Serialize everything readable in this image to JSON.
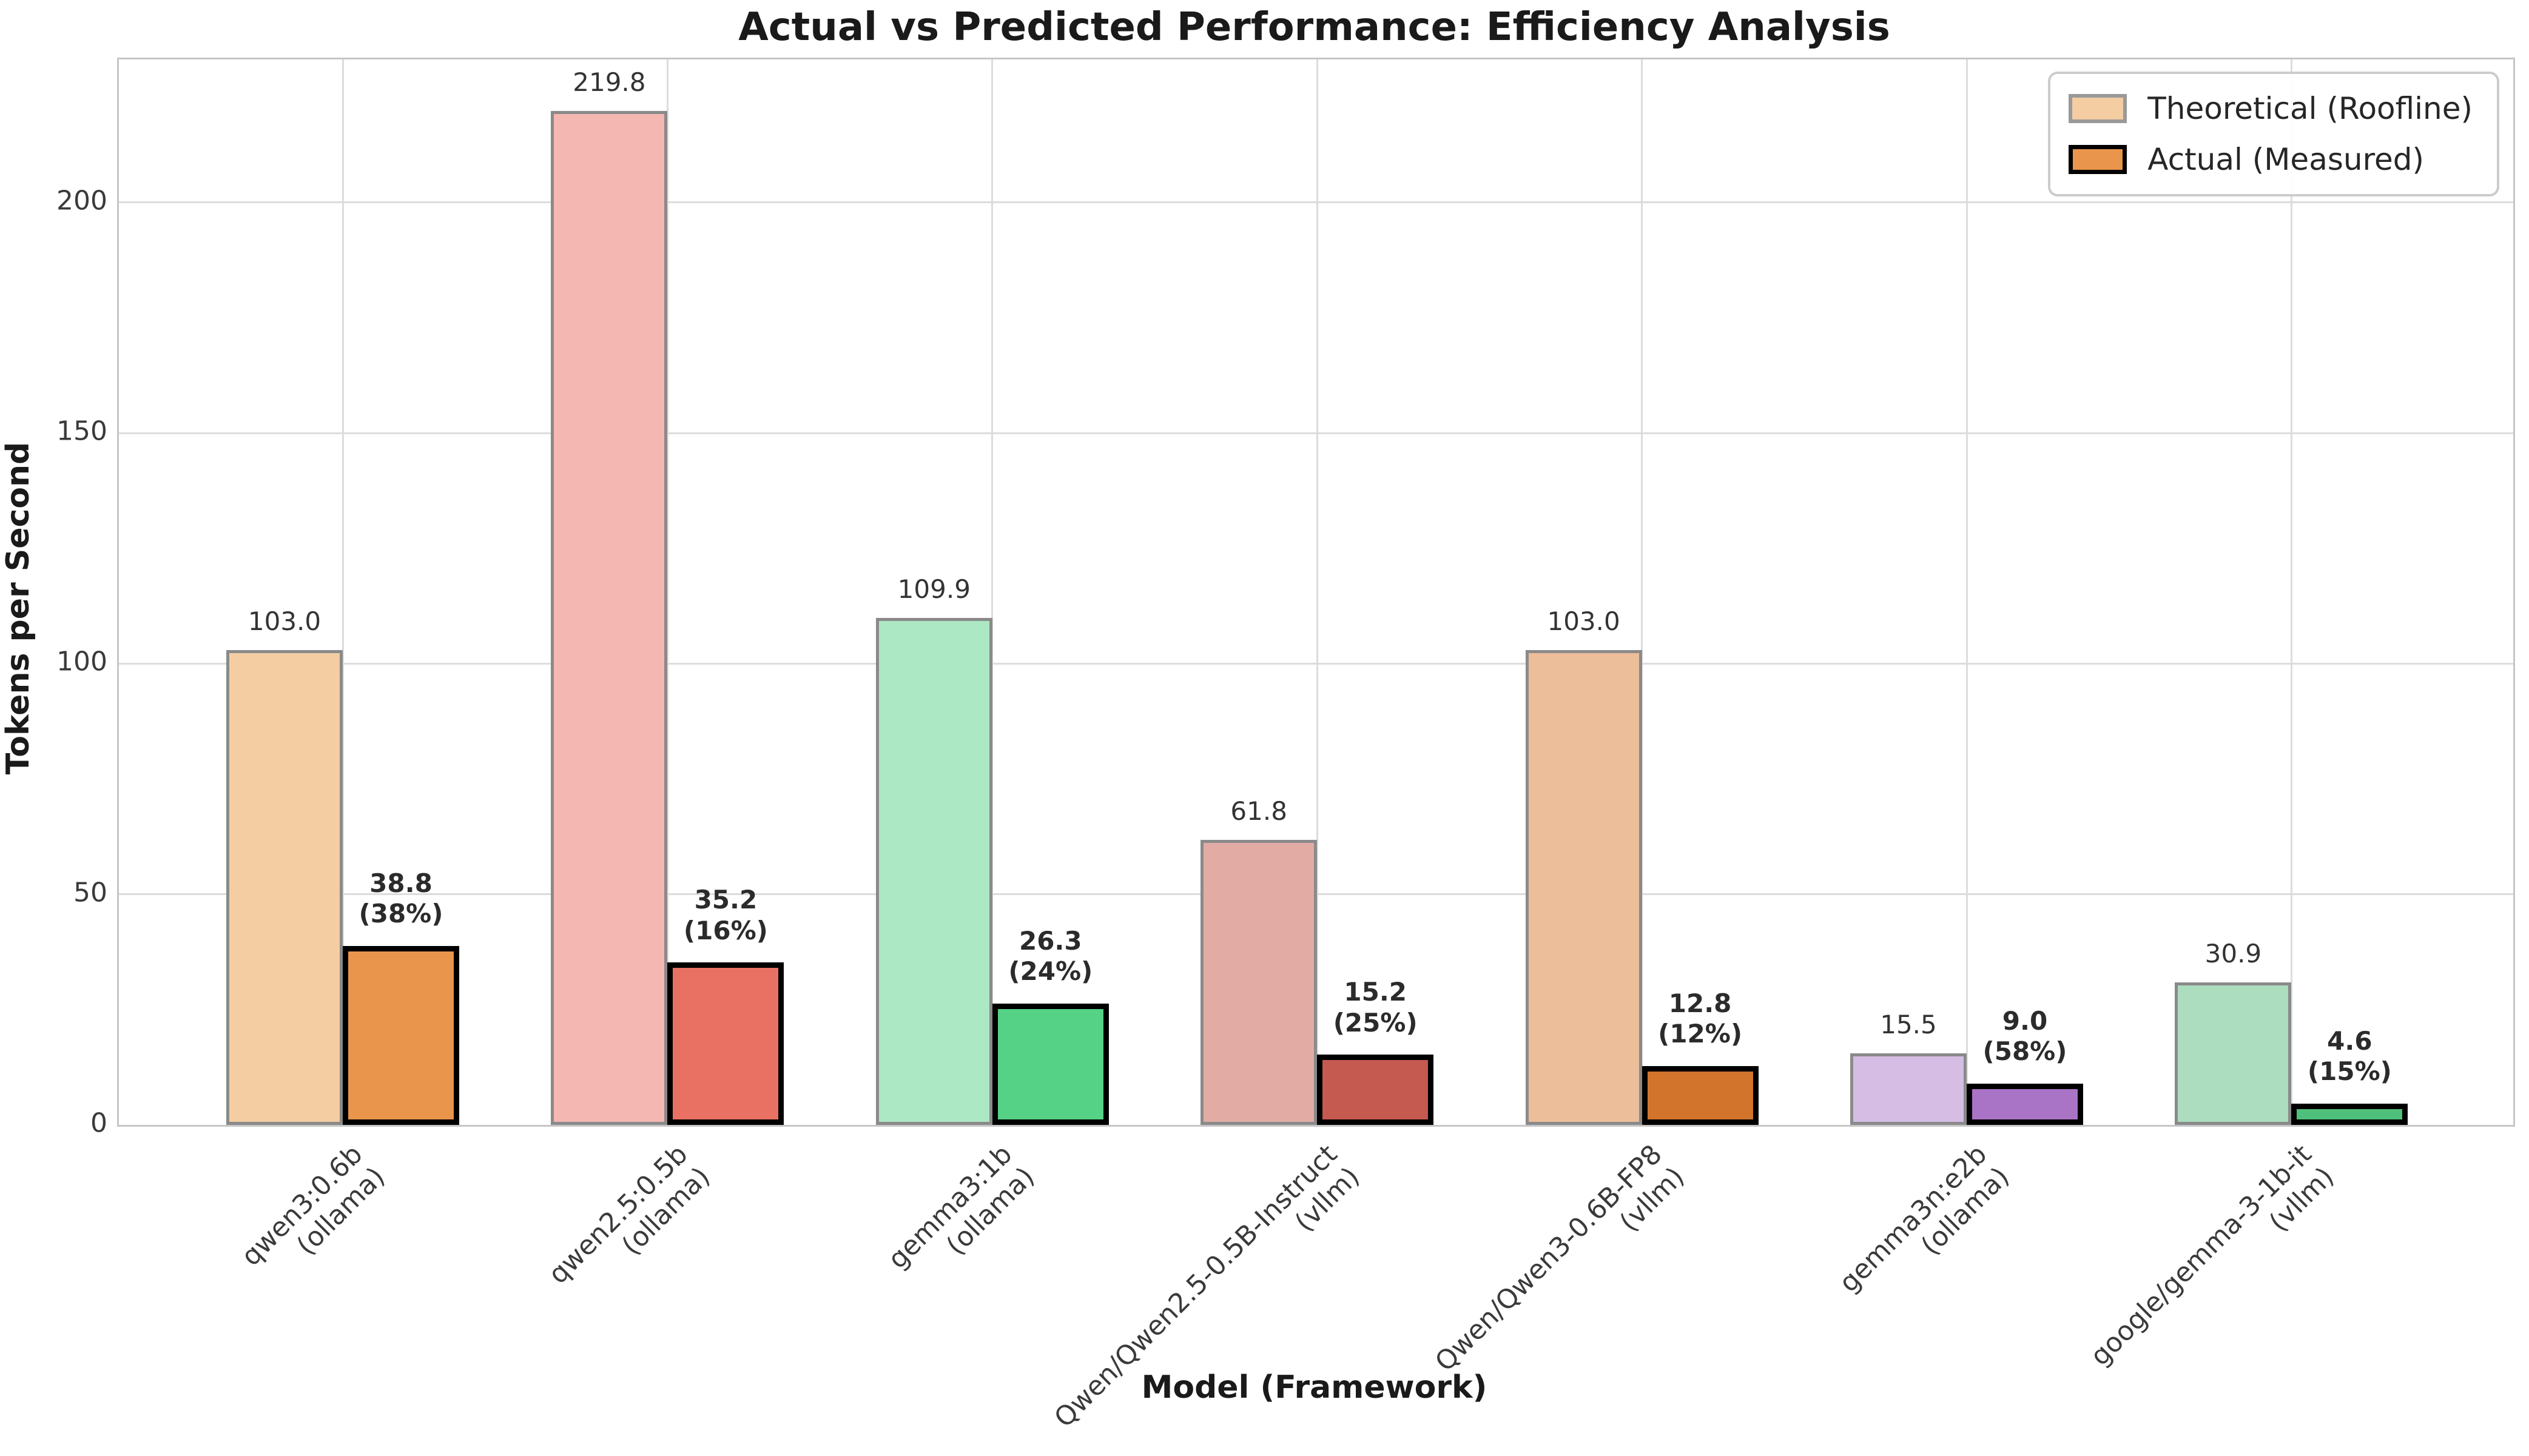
{
  "title": "Actual vs Predicted Performance: Efficiency Analysis",
  "legend": {
    "theoretical_label": "Theoretical (Roofline)",
    "actual_label": "Actual (Measured)",
    "theoretical_swatch_color": "#F4CDA3",
    "actual_swatch_color": "#E9964C"
  },
  "chart_data": {
    "type": "bar",
    "title": "Actual vs Predicted Performance: Efficiency Analysis",
    "xlabel": "Model (Framework)",
    "ylabel": "Tokens per Second",
    "ylim": [
      0,
      231
    ],
    "yticks": [
      0,
      50,
      100,
      150,
      200
    ],
    "grid": true,
    "legend_position": "upper right",
    "categories": [
      "qwen3:0.6b\n(ollama)",
      "qwen2.5:0.5b\n(ollama)",
      "gemma3:1b\n(ollama)",
      "Qwen/Qwen2.5-0.5B-Instruct\n(vllm)",
      "Qwen/Qwen3-0.6B-FP8\n(vllm)",
      "gemma3n:e2b\n(ollama)",
      "google/gemma-3-1b-it\n(vllm)"
    ],
    "series": [
      {
        "name": "Theoretical (Roofline)",
        "values": [
          103.0,
          219.8,
          109.9,
          61.8,
          103.0,
          15.5,
          30.9
        ]
      },
      {
        "name": "Actual (Measured)",
        "values": [
          38.8,
          35.2,
          26.3,
          15.2,
          12.8,
          9.0,
          4.6
        ]
      }
    ],
    "efficiency_pct": [
      38,
      16,
      24,
      25,
      12,
      58,
      15
    ],
    "bar_colors": [
      {
        "theoretical": "#F4CDA3",
        "actual": "#E9964C"
      },
      {
        "theoretical": "#F5B7B2",
        "actual": "#E97164"
      },
      {
        "theoretical": "#ACE8C4",
        "actual": "#56D287"
      },
      {
        "theoretical": "#E2ACA5",
        "actual": "#C55A50"
      },
      {
        "theoretical": "#ECBE9A",
        "actual": "#D3742C"
      },
      {
        "theoretical": "#D5BDE3",
        "actual": "#A973C6"
      },
      {
        "theoretical": "#ABDDBE",
        "actual": "#4FC07B"
      }
    ]
  }
}
